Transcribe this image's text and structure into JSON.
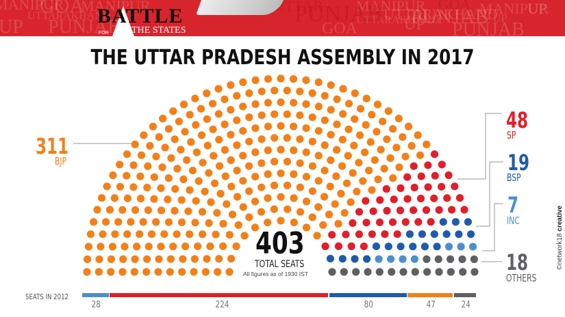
{
  "banner": {
    "background_words": [
      "MANIPUR",
      "GOA",
      "MANIPUR",
      "UTTARAKHAND",
      "UP",
      "PUNJAB",
      "UTTAR",
      "PUNJAB",
      "MANIPUR",
      "GOA",
      "MANIPUR",
      "UTTARAKHAND",
      "UP",
      "PUNJAB",
      "UTTARAKHAND",
      "UP",
      "GOA",
      "PUNJAB",
      "UP"
    ],
    "logo": {
      "big": "BATTLE",
      "small_for": "FOR",
      "small_states": "THE STATES"
    },
    "color": "#d8242c"
  },
  "title": "THE UTTAR PRADESH ASSEMBLY IN 2017",
  "center": {
    "total": "403",
    "total_label": "TOTAL SEATS",
    "note": "All figures as of 1930 IST"
  },
  "parties": [
    {
      "name": "BJP",
      "seats": 311,
      "color": "#f57f17"
    },
    {
      "name": "SP",
      "seats": 48,
      "color": "#e31e2b"
    },
    {
      "name": "BSP",
      "seats": 19,
      "color": "#1e5bb0"
    },
    {
      "name": "INC",
      "seats": 7,
      "color": "#4a8fd3"
    },
    {
      "name": "OTHERS",
      "seats": 18,
      "color": "#5f6062"
    }
  ],
  "labels": {
    "bjp": {
      "num": "311",
      "name": "BJP"
    },
    "sp": {
      "num": "48",
      "name": "SP"
    },
    "bsp": {
      "num": "19",
      "name": "BSP"
    },
    "inc": {
      "num": "7",
      "name": "INC"
    },
    "others": {
      "num": "18",
      "name": "OTHERS"
    }
  },
  "seats_2012": {
    "label": "SEATS IN 2012",
    "segments": [
      {
        "party": "INC",
        "seats": 28,
        "color": "#4a8fd3"
      },
      {
        "party": "SP",
        "seats": 224,
        "color": "#e31e2b"
      },
      {
        "party": "BSP",
        "seats": 80,
        "color": "#1e5bb0"
      },
      {
        "party": "BJP",
        "seats": 47,
        "color": "#f57f17"
      },
      {
        "party": "OTHERS",
        "seats": 24,
        "color": "#5f6062"
      }
    ]
  },
  "credit": {
    "prefix": "©network18",
    "suffix": "creative"
  },
  "chart_data": {
    "type": "parliament-hemicycle",
    "title": "THE UTTAR PRADESH ASSEMBLY IN 2017",
    "total_seats": 403,
    "categories": [
      "BJP",
      "SP",
      "BSP",
      "INC",
      "OTHERS"
    ],
    "values": [
      311,
      48,
      19,
      7,
      18
    ],
    "colors": [
      "#f57f17",
      "#e31e2b",
      "#1e5bb0",
      "#4a8fd3",
      "#5f6062"
    ],
    "note": "All figures as of 1930 IST",
    "secondary": {
      "type": "stacked-bar",
      "label": "SEATS IN 2012",
      "categories": [
        "INC",
        "SP",
        "BSP",
        "BJP",
        "OTHERS"
      ],
      "values": [
        28,
        224,
        80,
        47,
        24
      ]
    }
  }
}
